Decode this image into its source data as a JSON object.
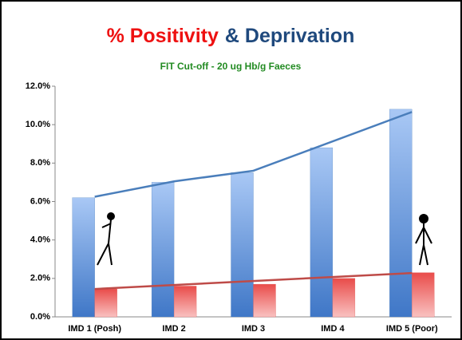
{
  "chart_data": {
    "type": "bar",
    "title": [
      {
        "text": "% Positivity",
        "color": "#ee1111"
      },
      {
        "text": "& Deprivation",
        "color": "#1f497d"
      }
    ],
    "subtitle": "FIT Cut-off - 20 ug Hb/g Faeces",
    "subtitle_color": "#228b22",
    "categories": [
      "IMD 1 (Posh)",
      "IMD 2",
      "IMD 3",
      "IMD 4",
      "IMD 5 (Poor)"
    ],
    "series": [
      {
        "type": "bar",
        "color": "#4f81bd",
        "values": [
          6.2,
          7.0,
          7.5,
          8.8,
          10.8
        ]
      },
      {
        "type": "bar",
        "color": "#e05a57",
        "values": [
          1.45,
          1.6,
          1.7,
          2.0,
          2.3
        ]
      },
      {
        "type": "line",
        "color": "#4a7ebb",
        "values": [
          6.25,
          7.05,
          7.6,
          null,
          10.66
        ]
      },
      {
        "type": "line",
        "color": "#be4b48",
        "values": [
          1.45,
          null,
          null,
          null,
          2.28
        ]
      }
    ],
    "ylim": [
      0,
      12
    ],
    "yticks": [
      {
        "value": 0,
        "label": "0.0%"
      },
      {
        "value": 2,
        "label": "2.0%"
      },
      {
        "value": 4,
        "label": "4.0%"
      },
      {
        "value": 6,
        "label": "6.0%"
      },
      {
        "value": 8,
        "label": "8.0%"
      },
      {
        "value": 10,
        "label": "10.0%"
      },
      {
        "value": 12,
        "label": "12.0%"
      }
    ],
    "grid": false
  }
}
